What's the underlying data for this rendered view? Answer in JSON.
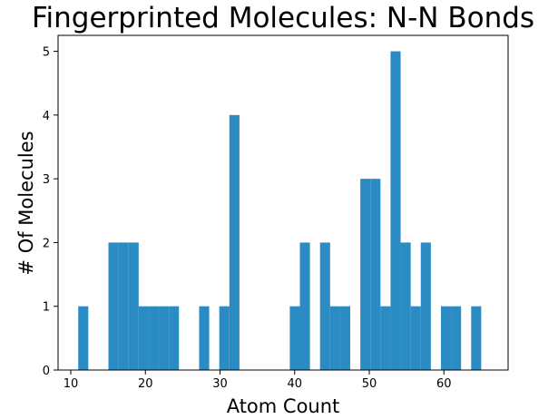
{
  "chart_data": {
    "type": "bar",
    "title": "Fingerprinted Molecules: N-N Bonds",
    "xlabel": "Atom Count",
    "ylabel": "# Of Molecules",
    "xlim": [
      8.3,
      68.6
    ],
    "ylim": [
      0,
      5.25
    ],
    "xticks": [
      "10",
      "20",
      "30",
      "40",
      "50",
      "60"
    ],
    "yticks": [
      "0",
      "1",
      "2",
      "3",
      "4",
      "5"
    ],
    "grid": false,
    "bar_color": "#2b8cc4",
    "bins": [
      {
        "x0": 11.0,
        "x1": 12.35,
        "count": 1
      },
      {
        "x0": 15.05,
        "x1": 16.4,
        "count": 2
      },
      {
        "x0": 16.4,
        "x1": 17.75,
        "count": 2
      },
      {
        "x0": 17.75,
        "x1": 19.1,
        "count": 2
      },
      {
        "x0": 19.1,
        "x1": 20.45,
        "count": 1
      },
      {
        "x0": 20.45,
        "x1": 21.8,
        "count": 1
      },
      {
        "x0": 21.8,
        "x1": 23.15,
        "count": 1
      },
      {
        "x0": 23.15,
        "x1": 24.5,
        "count": 1
      },
      {
        "x0": 27.2,
        "x1": 28.55,
        "count": 1
      },
      {
        "x0": 29.9,
        "x1": 31.25,
        "count": 1
      },
      {
        "x0": 31.25,
        "x1": 32.6,
        "count": 4
      },
      {
        "x0": 39.35,
        "x1": 40.7,
        "count": 1
      },
      {
        "x0": 40.7,
        "x1": 42.05,
        "count": 2
      },
      {
        "x0": 43.4,
        "x1": 44.75,
        "count": 2
      },
      {
        "x0": 44.75,
        "x1": 46.1,
        "count": 1
      },
      {
        "x0": 46.1,
        "x1": 47.45,
        "count": 1
      },
      {
        "x0": 48.8,
        "x1": 50.15,
        "count": 3
      },
      {
        "x0": 50.15,
        "x1": 51.5,
        "count": 3
      },
      {
        "x0": 51.5,
        "x1": 52.85,
        "count": 1
      },
      {
        "x0": 52.85,
        "x1": 54.2,
        "count": 5
      },
      {
        "x0": 54.2,
        "x1": 55.55,
        "count": 2
      },
      {
        "x0": 55.55,
        "x1": 56.9,
        "count": 1
      },
      {
        "x0": 56.9,
        "x1": 58.25,
        "count": 2
      },
      {
        "x0": 59.6,
        "x1": 60.95,
        "count": 1
      },
      {
        "x0": 60.95,
        "x1": 62.3,
        "count": 1
      },
      {
        "x0": 63.65,
        "x1": 65.0,
        "count": 1
      }
    ]
  }
}
